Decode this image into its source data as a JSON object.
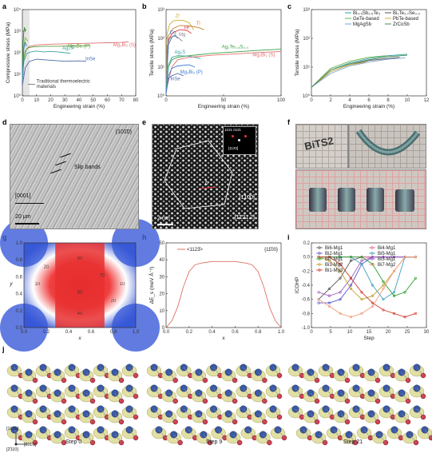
{
  "panels": {
    "a": "a",
    "b": "b",
    "c": "c",
    "d": "d",
    "e": "e",
    "f": "f",
    "g": "g",
    "h": "h",
    "i": "i",
    "j": "j"
  },
  "chart_data": [
    {
      "id": "a",
      "type": "line",
      "xlabel": "Engineering strain (%)",
      "ylabel": "Compressive stress (MPa)",
      "xlim": [
        0,
        80
      ],
      "ylim_log": [
        1,
        10000
      ],
      "xticks": [
        "0",
        "10",
        "20",
        "30",
        "40",
        "50",
        "60",
        "70",
        "80"
      ],
      "yticks": [
        "10⁰",
        "10¹",
        "10²",
        "10³",
        "10⁴"
      ],
      "shaded_region_x": [
        0,
        5
      ],
      "series": [
        {
          "name": "Mg₃Bi₂ (S)",
          "color": "#e07070",
          "x": [
            0,
            1,
            3,
            5,
            10,
            20,
            30,
            40,
            50,
            60,
            70,
            75
          ],
          "y": [
            5,
            60,
            150,
            200,
            230,
            250,
            260,
            270,
            280,
            290,
            300,
            320
          ]
        },
        {
          "name": "Mg₃Bi₂ (P)",
          "color": "#5a9e3a",
          "x": [
            0,
            1,
            2,
            4,
            8,
            15,
            25,
            35,
            45,
            48
          ],
          "y": [
            5,
            50,
            120,
            170,
            190,
            200,
            200,
            210,
            210,
            220
          ]
        },
        {
          "name": "Ag₂S",
          "color": "#3aa0a0",
          "x": [
            0,
            1,
            3,
            6,
            10,
            15,
            20,
            25,
            30,
            34
          ],
          "y": [
            5,
            40,
            90,
            110,
            120,
            110,
            115,
            110,
            100,
            95
          ]
        },
        {
          "name": "InSe",
          "color": "#4a6aa8",
          "x": [
            0,
            2,
            5,
            10,
            20,
            30,
            40,
            45
          ],
          "y": [
            3,
            20,
            40,
            50,
            45,
            40,
            42,
            40
          ]
        },
        {
          "name": "",
          "color": "#2d8a2d",
          "x": [
            0,
            0.5,
            1,
            1.5,
            2,
            2.5
          ],
          "y": [
            5,
            300,
            900,
            1500,
            1000,
            1200
          ]
        },
        {
          "name": "",
          "color": "#7ab84a",
          "x": [
            0,
            1,
            2,
            3,
            4
          ],
          "y": [
            5,
            200,
            500,
            400,
            350
          ]
        },
        {
          "name": "",
          "color": "#3a7ad0",
          "x": [
            0,
            1,
            2,
            3
          ],
          "y": [
            5,
            150,
            300,
            200
          ]
        }
      ],
      "annotations": [
        "Mg₃Bi₂ (S)",
        "Mg₃Bi₂ (P)",
        "Ag₂S",
        "InSe",
        "Traditional thermoelectric materials"
      ]
    },
    {
      "id": "b",
      "type": "line",
      "xlabel": "Engineering strain (%)",
      "ylabel": "Tensile stress (MPa)",
      "xlim": [
        0,
        100
      ],
      "ylim_log": [
        1,
        1000
      ],
      "xticks": [
        "0",
        "50",
        "100"
      ],
      "yticks": [
        "10⁰",
        "10¹",
        "10²",
        "10³"
      ],
      "series": [
        {
          "name": "Zr",
          "color": "#d0b030",
          "x": [
            0,
            1,
            3,
            6,
            10,
            15,
            20,
            24
          ],
          "y": [
            2,
            150,
            300,
            400,
            430,
            420,
            350,
            200
          ]
        },
        {
          "name": "Ti",
          "color": "#c08030",
          "x": [
            0,
            2,
            6,
            12,
            20,
            28,
            33
          ],
          "y": [
            2,
            120,
            220,
            280,
            270,
            240,
            200
          ]
        },
        {
          "name": "Hf",
          "color": "#e04040",
          "x": [
            0,
            2,
            6,
            12,
            18,
            22
          ],
          "y": [
            2,
            90,
            160,
            200,
            190,
            150
          ]
        },
        {
          "name": "Co",
          "color": "#3070c0",
          "x": [
            0,
            2,
            5,
            8,
            10
          ],
          "y": [
            2,
            60,
            110,
            130,
            100
          ]
        },
        {
          "name": "Mg",
          "color": "#888888",
          "x": [
            0,
            1,
            3,
            6,
            10,
            14
          ],
          "y": [
            2,
            50,
            100,
            120,
            110,
            80
          ]
        },
        {
          "name": "Ag₂Te₀.₆S₀.₄",
          "color": "#3aa040",
          "x": [
            0,
            2,
            5,
            10,
            20,
            40,
            60,
            80,
            100
          ],
          "y": [
            1.5,
            10,
            18,
            22,
            25,
            30,
            34,
            38,
            42
          ]
        },
        {
          "name": "Ag₂S",
          "color": "#3aa0a0",
          "x": [
            0,
            2,
            5,
            10,
            20,
            30
          ],
          "y": [
            1.5,
            12,
            22,
            25,
            24,
            20
          ]
        },
        {
          "name": "Mg₃Bi₂ (S)",
          "color": "#e07070",
          "x": [
            0,
            5,
            10,
            20,
            40,
            60,
            80,
            100
          ],
          "y": [
            1.5,
            10,
            18,
            22,
            26,
            29,
            32,
            35
          ]
        },
        {
          "name": "InSe",
          "color": "#4a6aa8",
          "x": [
            0,
            2,
            5,
            10,
            15
          ],
          "y": [
            1.2,
            4,
            5,
            6,
            5
          ]
        },
        {
          "name": "Mg₃Bi₂ (P)",
          "color": "#3a7ad0",
          "x": [
            0,
            2,
            5,
            10,
            20,
            25
          ],
          "y": [
            1.2,
            5,
            9,
            11,
            12,
            10
          ]
        }
      ]
    },
    {
      "id": "c",
      "type": "line",
      "xlabel": "Engineering strain (%)",
      "ylabel": "Tensile stress (MPa)",
      "xlim": [
        0,
        12
      ],
      "ylim_log": [
        1,
        1000
      ],
      "xticks": [
        "0",
        "2",
        "4",
        "6",
        "8",
        "10",
        "12"
      ],
      "yticks": [
        "10⁰",
        "10¹",
        "10²",
        "10³"
      ],
      "legend": [
        "Bi₀.₅Sb₁.₅Te₃",
        "Bi₂Te₂.₇Se₀.₃",
        "GeTe-based",
        "PbTe-based",
        "MgAgSb",
        "ZrCoSb"
      ],
      "series": [
        {
          "name": "Bi₀.₅Sb₁.₅Te₃",
          "color": "#2aa0a0",
          "x": [
            0,
            2,
            4,
            6,
            8,
            10
          ],
          "y": [
            2,
            8,
            14,
            20,
            25,
            28
          ]
        },
        {
          "name": "Bi₂Te₂.₇Se₀.₃",
          "color": "#555555",
          "x": [
            0,
            2,
            4,
            6,
            8,
            9.2
          ],
          "y": [
            2,
            7,
            12,
            17,
            20,
            22
          ]
        },
        {
          "name": "GeTe-based",
          "color": "#6ab04a",
          "x": [
            0,
            2,
            4,
            6,
            7.8
          ],
          "y": [
            2,
            9,
            16,
            22,
            25
          ]
        },
        {
          "name": "PbTe-based",
          "color": "#d4b030",
          "x": [
            0,
            2,
            4,
            5.8
          ],
          "y": [
            2,
            7,
            12,
            15
          ]
        },
        {
          "name": "MgAgSb",
          "color": "#7aa0d0",
          "x": [
            0,
            2,
            4,
            6,
            8,
            9.8
          ],
          "y": [
            2,
            6,
            11,
            15,
            19,
            21
          ]
        },
        {
          "name": "ZrCoSb",
          "color": "#4a8a5a",
          "x": [
            0,
            2,
            4,
            6,
            8,
            10
          ],
          "y": [
            2,
            8,
            13,
            18,
            23,
            26
          ]
        }
      ]
    },
    {
      "id": "h",
      "type": "line",
      "xlabel": "x",
      "ylabel": "ΔE_s (meV Å⁻²)",
      "xlim": [
        0,
        1.0
      ],
      "ylim": [
        0,
        50
      ],
      "xticks": [
        "0.0",
        "0.2",
        "0.4",
        "0.6",
        "0.8",
        "1.0"
      ],
      "yticks": [
        "0",
        "10",
        "20",
        "30",
        "40",
        "50"
      ],
      "legend": [
        "<1123̄>"
      ],
      "corner_label": "{11̄00}",
      "series": [
        {
          "name": "<1123̄>",
          "color": "#e07060",
          "x": [
            0,
            0.05,
            0.1,
            0.15,
            0.2,
            0.25,
            0.3,
            0.4,
            0.5,
            0.6,
            0.7,
            0.75,
            0.8,
            0.85,
            0.9,
            0.95,
            1.0
          ],
          "y": [
            0,
            4,
            12,
            24,
            33,
            37,
            38,
            39,
            39,
            39,
            38,
            37,
            33,
            24,
            12,
            4,
            0
          ]
        }
      ]
    },
    {
      "id": "i",
      "type": "line",
      "xlabel": "Step",
      "ylabel": "ICOHP",
      "xlim": [
        -2,
        30
      ],
      "ylim": [
        -1.0,
        0.2
      ],
      "xticks": [
        "0",
        "5",
        "10",
        "15",
        "20",
        "25",
        "30"
      ],
      "yticks": [
        "-1.0",
        "-0.8",
        "-0.6",
        "-0.4",
        "-0.2",
        "0.0",
        "0.2"
      ],
      "legend": [
        "Bi6-Mg1",
        "Bi4-Mg1",
        "Bi2-Mg1",
        "Bi5-Mg1",
        "Bi7-Mg1",
        "Bi3-Mg1",
        "Bi3-Mg2",
        "Bi7-Mg2",
        "Bi1-Mg3"
      ],
      "series": [
        {
          "name": "Bi6-Mg1",
          "color": "#555555",
          "x": [
            0,
            3,
            6,
            9,
            12,
            15,
            18,
            21,
            24,
            27
          ],
          "y": [
            -0.6,
            -0.45,
            -0.3,
            -0.05,
            0,
            0,
            0,
            0,
            0,
            0
          ]
        },
        {
          "name": "Bi4-Mg1",
          "color": "#e06090",
          "x": [
            0,
            3,
            6,
            9,
            12,
            15,
            18,
            21,
            24,
            27
          ],
          "y": [
            0,
            0,
            0,
            0,
            0,
            0,
            0,
            0,
            0,
            0
          ]
        },
        {
          "name": "Bi2-Mg1",
          "color": "#5a5ad0",
          "x": [
            0,
            3,
            6,
            9,
            12,
            15,
            18,
            21,
            24,
            27
          ],
          "y": [
            -0.65,
            -0.65,
            -0.6,
            -0.4,
            -0.1,
            0,
            0,
            0,
            0,
            0
          ]
        },
        {
          "name": "Bi5-Mg1",
          "color": "#40a0c0",
          "x": [
            0,
            3,
            6,
            9,
            12,
            15,
            18,
            21,
            24,
            27
          ],
          "y": [
            0,
            0,
            0,
            0,
            -0.1,
            -0.4,
            -0.6,
            -0.5,
            0,
            0
          ]
        },
        {
          "name": "Bi7-Mg1",
          "color": "#30a030",
          "x": [
            0,
            3,
            6,
            9,
            12,
            15,
            18,
            21,
            24,
            27
          ],
          "y": [
            0,
            0,
            0,
            0,
            0,
            -0.1,
            -0.35,
            -0.55,
            -0.5,
            -0.3
          ]
        },
        {
          "name": "Bi3-Mg1",
          "color": "#a060c0",
          "x": [
            0,
            3,
            6,
            9,
            12,
            15,
            18,
            21,
            24,
            27
          ],
          "y": [
            -0.5,
            -0.55,
            -0.5,
            -0.3,
            -0.05,
            0,
            0,
            0,
            0,
            0
          ]
        },
        {
          "name": "Bi3-Mg2",
          "color": "#c0a030",
          "x": [
            0,
            3,
            6,
            9,
            12,
            15,
            18,
            21,
            24,
            27
          ],
          "y": [
            0,
            -0.05,
            -0.2,
            -0.45,
            -0.6,
            -0.55,
            -0.4,
            -0.2,
            0,
            0
          ]
        },
        {
          "name": "Bi7-Mg2",
          "color": "#f0a080",
          "x": [
            0,
            3,
            6,
            9,
            12,
            15,
            18,
            21,
            24,
            27
          ],
          "y": [
            -0.6,
            -0.7,
            -0.8,
            -0.85,
            -0.8,
            -0.7,
            -0.45,
            -0.2,
            0,
            0
          ]
        },
        {
          "name": "Bi1-Mg3",
          "color": "#d04030",
          "x": [
            0,
            3,
            6,
            9,
            12,
            15,
            18,
            21,
            24,
            27
          ],
          "y": [
            0,
            0,
            -0.1,
            -0.3,
            -0.5,
            -0.65,
            -0.75,
            -0.8,
            -0.85,
            -0.8
          ]
        }
      ]
    },
    {
      "id": "g",
      "type": "heatmap",
      "xlabel": "x",
      "ylabel": "y",
      "xlim": [
        0,
        1.0
      ],
      "ylim": [
        0,
        1.0
      ],
      "xticks": [
        "0.0",
        "0.2",
        "0.4",
        "0.6",
        "0.8",
        "1.0"
      ],
      "yticks": [
        "0.0",
        "0.2",
        "0.4",
        "0.6",
        "0.8",
        "1.0"
      ],
      "contour_labels": [
        "80",
        "10",
        "20",
        "60",
        "70",
        "40",
        "10",
        "20"
      ]
    }
  ],
  "images": {
    "d": {
      "miller": "(101̄0)",
      "slip": "Slip bands",
      "dir": "[0001]",
      "scale": "20 μm"
    },
    "e": {
      "fft": "101̄1 011̄1",
      "zone": "[112̄3]",
      "dir1": "[1̄100]",
      "dir2": "[1̄121.2]",
      "scale": "2 nm",
      "b": "b"
    },
    "f": {
      "text": "BiTS2"
    },
    "j": {
      "steps": [
        "Step 0",
        "Step 9",
        "Step 21"
      ],
      "axes": [
        "[101̄0]",
        "[0001]",
        "[2̄110]"
      ]
    }
  }
}
